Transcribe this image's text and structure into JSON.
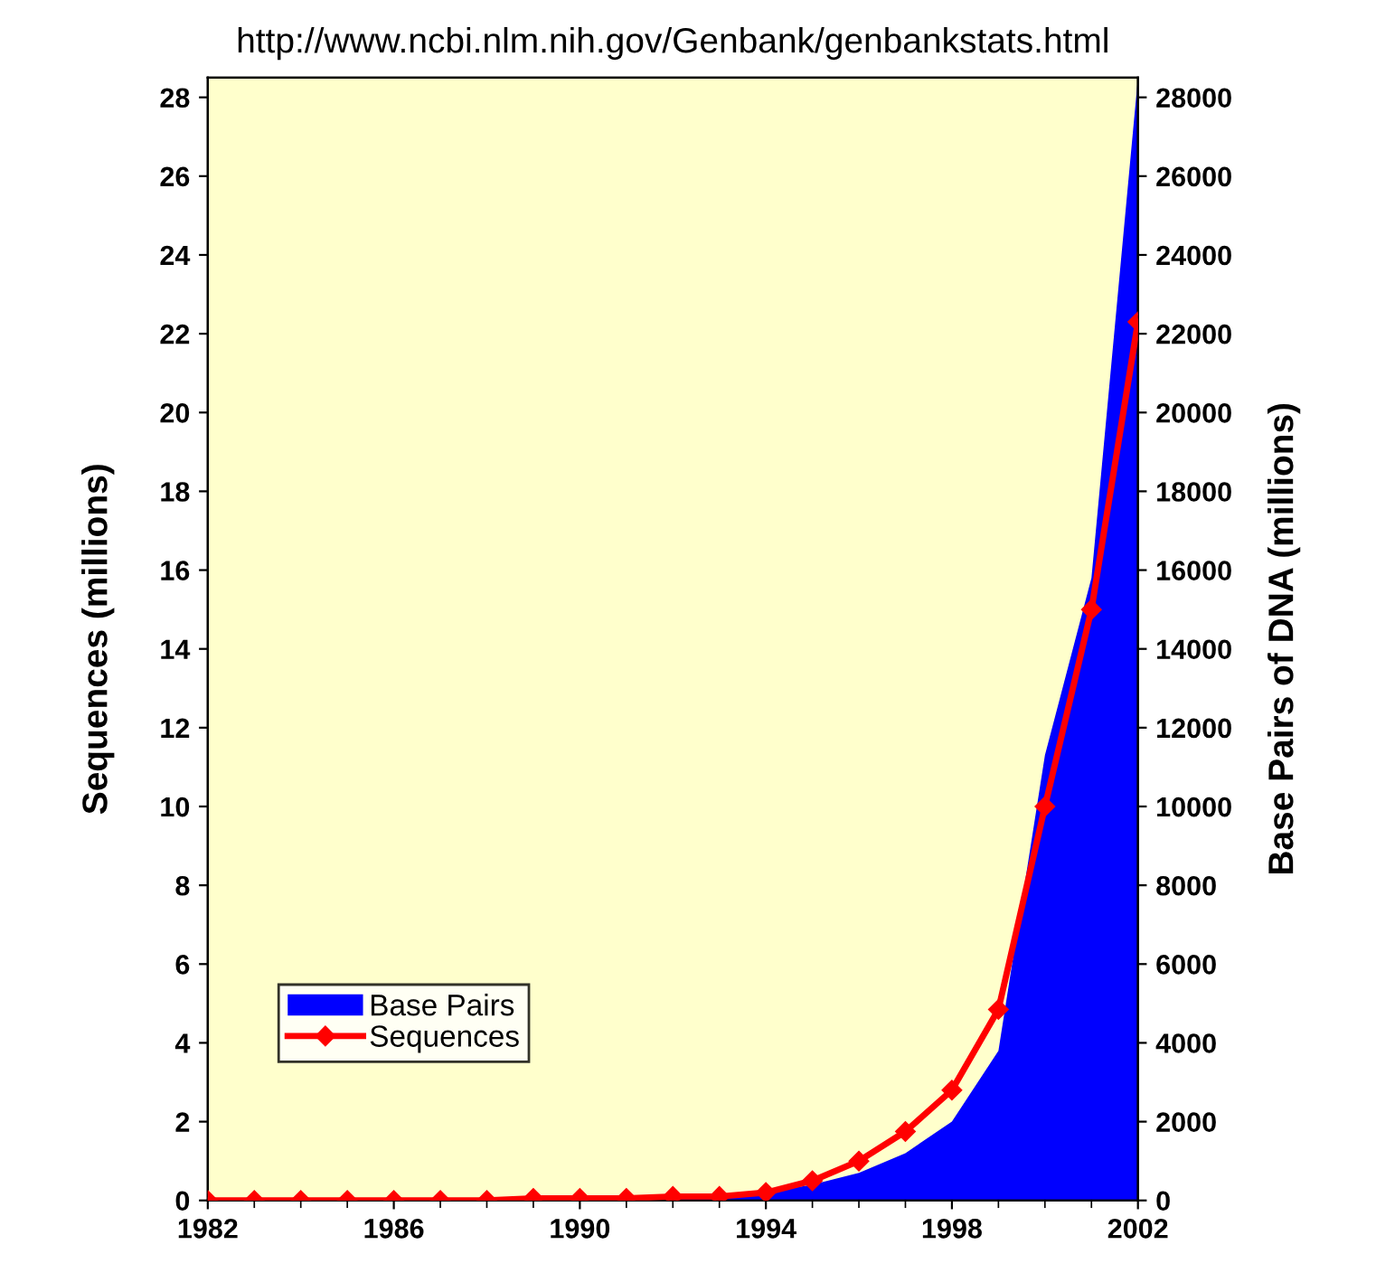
{
  "chart_data": {
    "type": "line",
    "title": "http://www.ncbi.nlm.nih.gov/Genbank/genbankstats.html",
    "ylabel": "Sequences (millions)",
    "y2label": "Base Pairs of DNA (millions)",
    "x": [
      1982,
      1983,
      1984,
      1985,
      1986,
      1987,
      1988,
      1989,
      1990,
      1991,
      1992,
      1993,
      1994,
      1995,
      1996,
      1997,
      1998,
      1999,
      2000,
      2001,
      2002
    ],
    "series": [
      {
        "name": "Base Pairs",
        "type": "area",
        "axis": "y2",
        "color": "#0000ff",
        "values": [
          0,
          0,
          0,
          0,
          0,
          0,
          0,
          0,
          0,
          0,
          100,
          100,
          200,
          400,
          700,
          1200,
          2000,
          3800,
          11300,
          15800,
          28500
        ]
      },
      {
        "name": "Sequences",
        "color": "#ff0000",
        "marker": "diamond",
        "values": [
          0,
          0,
          0,
          0,
          0,
          0,
          0,
          0.05,
          0.05,
          0.05,
          0.1,
          0.1,
          0.2,
          0.5,
          1.0,
          1.75,
          2.8,
          4.85,
          10.0,
          15.0,
          22.3
        ]
      }
    ],
    "xlim": [
      1982,
      2002
    ],
    "xticks": [
      1982,
      1986,
      1990,
      1994,
      1998,
      2002
    ],
    "ylim": [
      0,
      28.5
    ],
    "yticks": [
      0,
      2,
      4,
      6,
      8,
      10,
      12,
      14,
      16,
      18,
      20,
      22,
      24,
      26,
      28
    ],
    "y2lim": [
      0,
      28500
    ],
    "y2ticks": [
      0,
      2000,
      4000,
      6000,
      8000,
      10000,
      12000,
      14000,
      16000,
      18000,
      20000,
      22000,
      24000,
      26000,
      28000
    ],
    "grid": false,
    "legend": "bottom left"
  }
}
